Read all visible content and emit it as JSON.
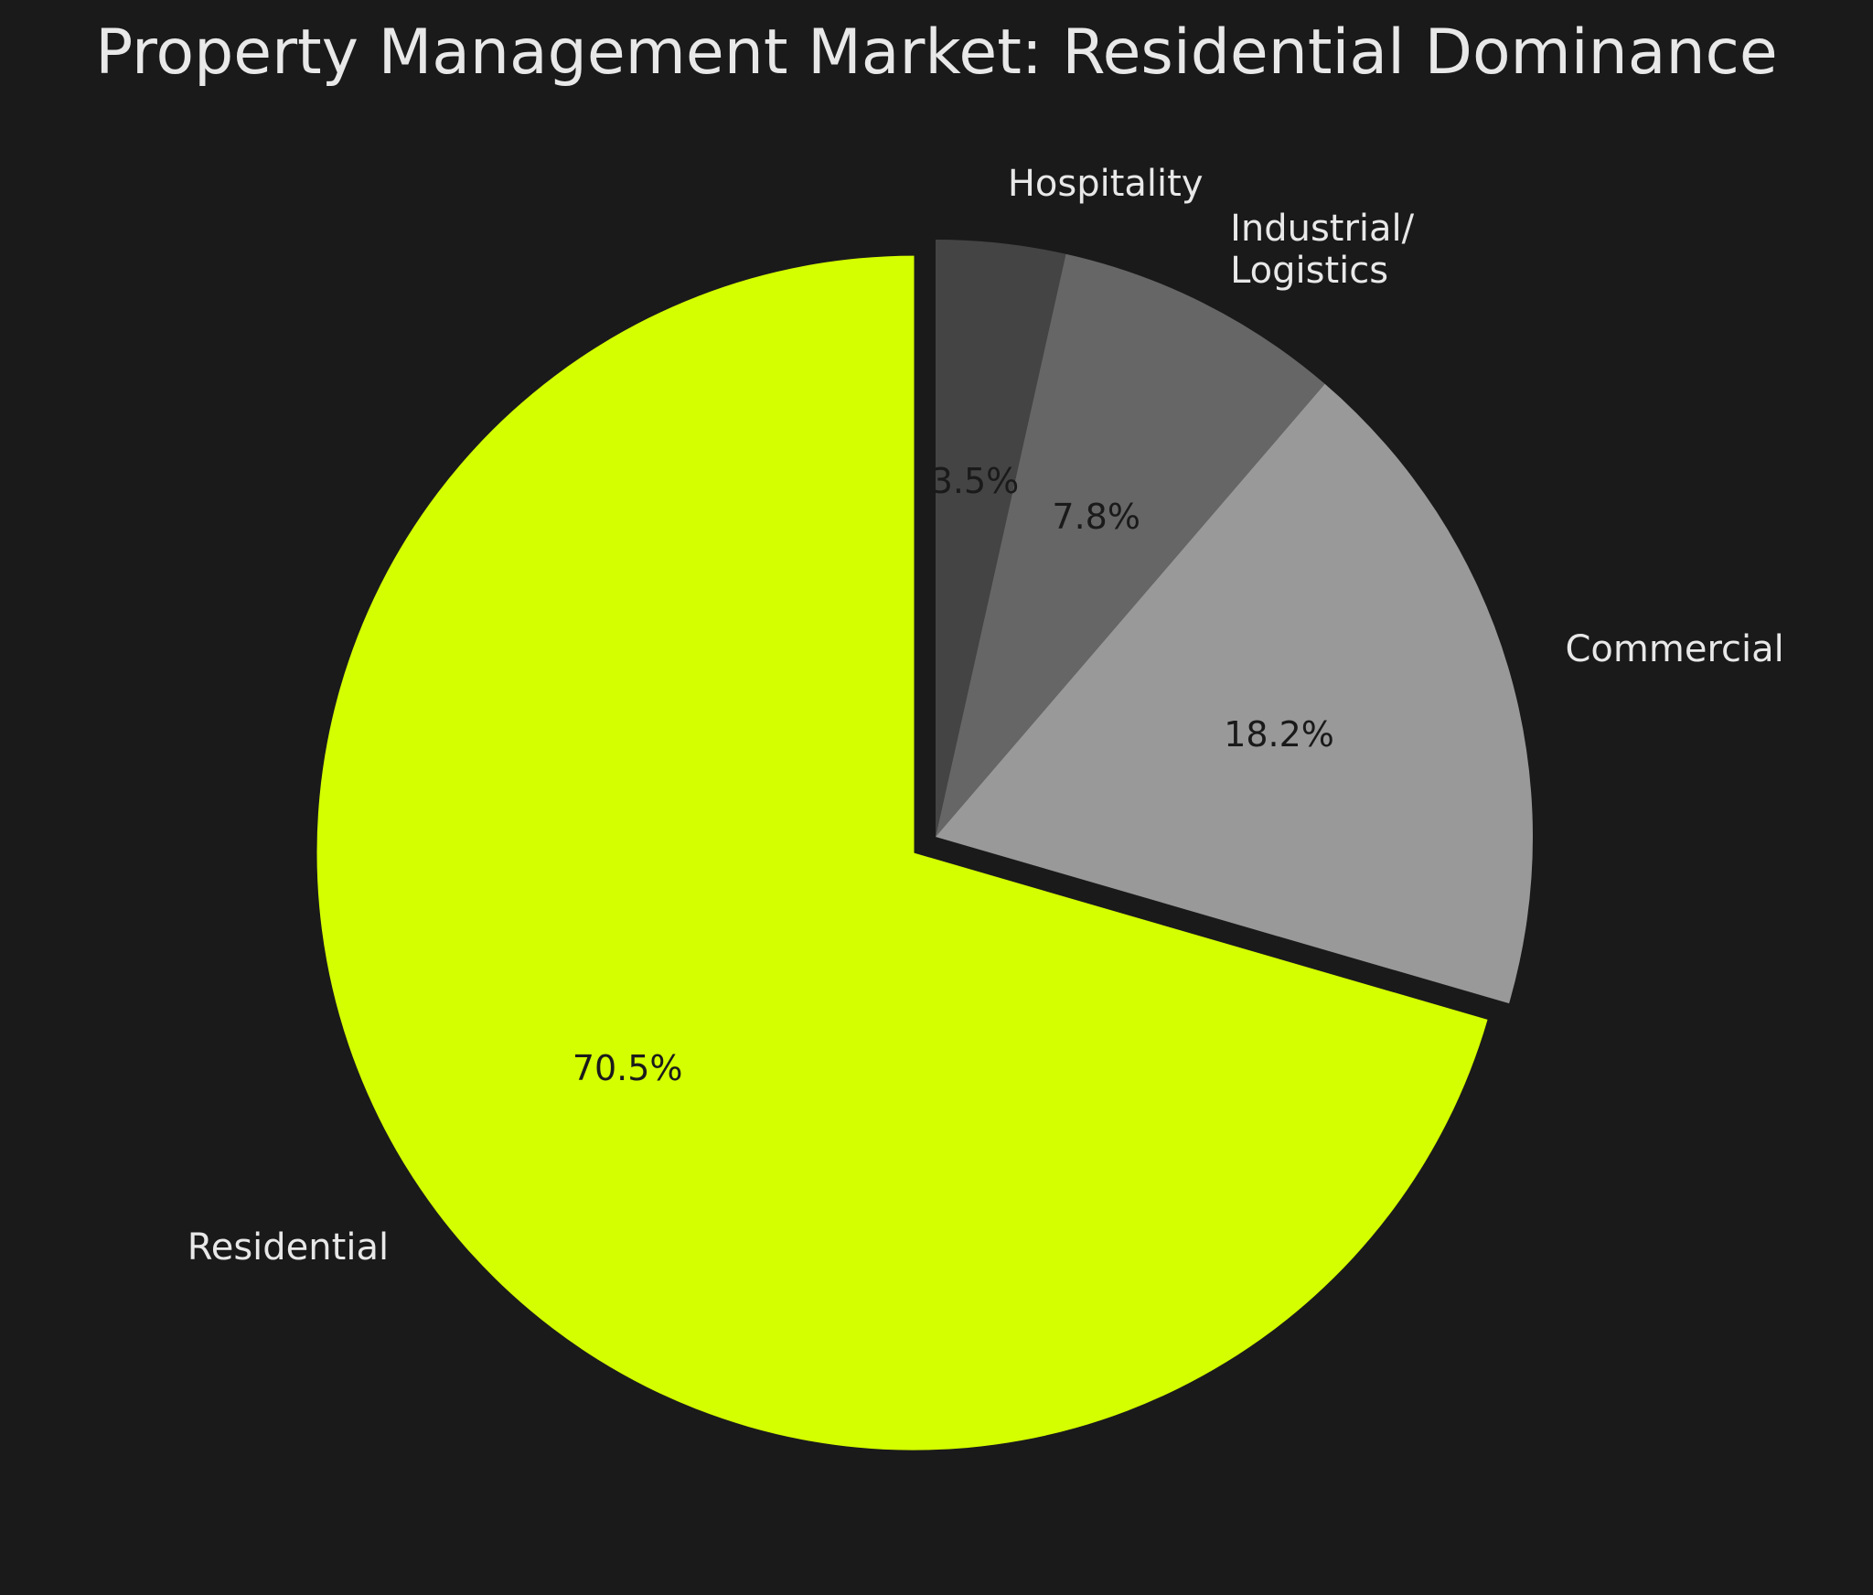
{
  "chart_data": {
    "type": "pie",
    "title": "Property Management Market: Residential Dominance",
    "categories": [
      "Hospitality",
      "Industrial/\nLogistics",
      "Commercial",
      "Residential"
    ],
    "values": [
      3.5,
      7.8,
      18.2,
      70.5
    ],
    "value_labels": [
      "3.5%",
      "7.8%",
      "18.2%",
      "70.5%"
    ],
    "colors": [
      "#444444",
      "#666666",
      "#999999",
      "#d4ff00"
    ],
    "explode": [
      0,
      0,
      0,
      0.045
    ],
    "start_angle": 90,
    "direction": "clockwise"
  }
}
